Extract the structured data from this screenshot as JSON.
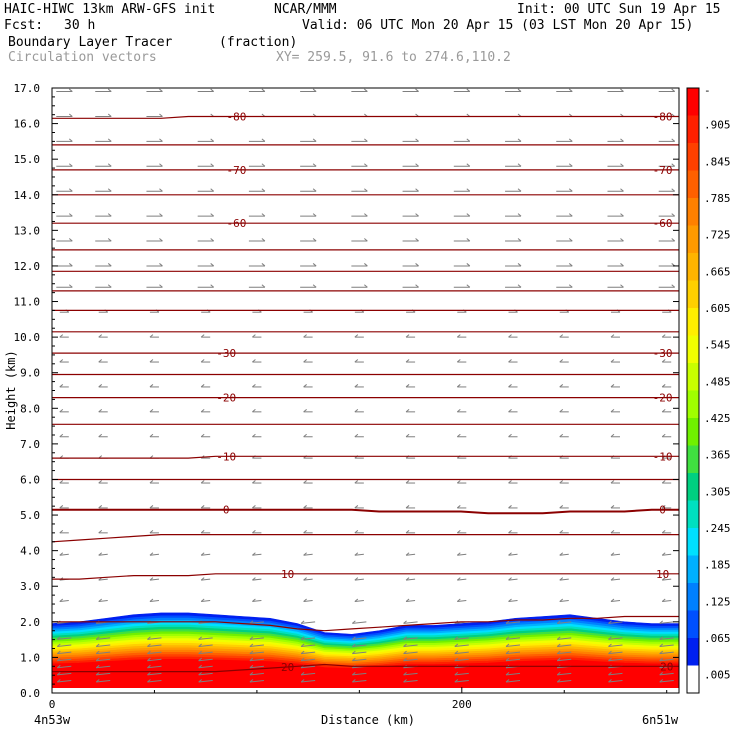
{
  "header": {
    "model": "HAIC-HIWC 13km ARW-GFS init",
    "org": "NCAR/MMM",
    "init": "Init: 00 UTC Sun 19 Apr 15",
    "fcst_label": "Fcst:",
    "fcst_value": "30 h",
    "valid": "Valid: 06 UTC Mon 20 Apr 15 (03 LST Mon 20 Apr 15)",
    "field": "Boundary Layer Tracer",
    "field_units": "(fraction)",
    "overlay": "Circulation vectors",
    "xy": "XY= 259.5, 91.6 to 274.6,110.2"
  },
  "chart_data": {
    "type": "heatmap",
    "xlabel": "Distance (km)",
    "ylabel": "Height (km)",
    "xlim": [
      0,
      306
    ],
    "ylim": [
      0,
      17
    ],
    "x_ticks": [
      {
        "value": 0,
        "label": "0"
      },
      {
        "value": 200,
        "label": "200"
      }
    ],
    "x_end_labels": {
      "left": "4n53w",
      "right": "6n51w"
    },
    "y_ticks": [
      "0.0",
      "1.0",
      "2.0",
      "3.0",
      "4.0",
      "5.0",
      "6.0",
      "7.0",
      "8.0",
      "9.0",
      "10.0",
      "11.0",
      "12.0",
      "13.0",
      "14.0",
      "15.0",
      "16.0",
      "17.0"
    ],
    "colorbar": {
      "labels": [
        "-",
        ".905",
        ".845",
        ".785",
        ".725",
        ".665",
        ".605",
        ".545",
        ".485",
        ".425",
        ".365",
        ".305",
        ".245",
        ".185",
        ".125",
        ".065",
        ".005"
      ],
      "colors": [
        "#ff0000",
        "#ff2000",
        "#ff4000",
        "#ff6000",
        "#ff8000",
        "#ff9a00",
        "#ffb400",
        "#ffd000",
        "#ffee00",
        "#f0ff00",
        "#c8ff00",
        "#a0ff00",
        "#70f000",
        "#40e040",
        "#00d080",
        "#00e0c0",
        "#00e0ff",
        "#00b0ff",
        "#0080ff",
        "#0050ff",
        "#0020f0"
      ],
      "bottom_color": "#ffffff"
    },
    "tracer_top_km": [
      1.95,
      2.0,
      2.1,
      2.2,
      2.25,
      2.25,
      2.2,
      2.15,
      2.1,
      1.95,
      1.7,
      1.65,
      1.75,
      1.9,
      1.9,
      1.95,
      2.0,
      2.1,
      2.15,
      2.2,
      2.1,
      2.0,
      1.95,
      1.95
    ],
    "isotherms": [
      {
        "value": 20,
        "label": "20",
        "heights": [
          0.6,
          0.6,
          0.6,
          0.6,
          0.6,
          0.6,
          0.6,
          0.65,
          0.7,
          0.75,
          0.8,
          0.75,
          0.75,
          0.75,
          0.75,
          0.75,
          0.75,
          0.75,
          0.75,
          0.75,
          0.75,
          0.75,
          0.75,
          0.75
        ],
        "labeled": true
      },
      {
        "value": 15,
        "label": "",
        "heights": [
          2.0,
          2.0,
          2.0,
          2.0,
          2.0,
          2.0,
          2.0,
          1.95,
          1.9,
          1.8,
          1.75,
          1.8,
          1.85,
          1.9,
          1.95,
          2.0,
          2.0,
          2.05,
          2.05,
          2.1,
          2.1,
          2.15,
          2.15,
          2.15
        ],
        "labeled": false
      },
      {
        "value": 10,
        "label": "10",
        "heights": [
          3.2,
          3.2,
          3.25,
          3.3,
          3.3,
          3.3,
          3.35,
          3.35,
          3.35,
          3.35,
          3.35,
          3.35,
          3.35,
          3.35,
          3.35,
          3.35,
          3.35,
          3.35,
          3.35,
          3.35,
          3.35,
          3.35,
          3.35,
          3.35
        ],
        "labeled": true
      },
      {
        "value": 5,
        "label": "",
        "heights": [
          4.25,
          4.3,
          4.35,
          4.4,
          4.45,
          4.45,
          4.45,
          4.45,
          4.45,
          4.45,
          4.45,
          4.45,
          4.45,
          4.45,
          4.45,
          4.45,
          4.45,
          4.45,
          4.45,
          4.45,
          4.45,
          4.45,
          4.45,
          4.45
        ],
        "labeled": false
      },
      {
        "value": 0,
        "label": "0",
        "heights": [
          5.15,
          5.15,
          5.15,
          5.15,
          5.15,
          5.15,
          5.15,
          5.15,
          5.15,
          5.15,
          5.15,
          5.15,
          5.1,
          5.1,
          5.1,
          5.1,
          5.05,
          5.05,
          5.05,
          5.1,
          5.1,
          5.1,
          5.15,
          5.15
        ],
        "labeled": true
      },
      {
        "value": -5,
        "label": "",
        "heights": [
          6.0,
          6.0,
          6.0,
          6.0,
          6.0,
          6.0,
          6.0,
          6.0,
          6.0,
          6.0,
          6.0,
          6.0,
          6.0,
          6.0,
          6.0,
          6.0,
          6.0,
          6.0,
          6.0,
          6.0,
          6.0,
          6.0,
          6.0,
          6.0
        ],
        "labeled": false
      },
      {
        "value": -10,
        "label": "-10",
        "heights": [
          6.6,
          6.6,
          6.6,
          6.6,
          6.6,
          6.6,
          6.65,
          6.65,
          6.65,
          6.65,
          6.65,
          6.65,
          6.65,
          6.65,
          6.65,
          6.65,
          6.65,
          6.65,
          6.65,
          6.65,
          6.65,
          6.65,
          6.65,
          6.65
        ],
        "labeled": true
      },
      {
        "value": -15,
        "label": "",
        "heights": [
          7.55,
          7.55,
          7.55,
          7.55,
          7.55,
          7.55,
          7.55,
          7.55,
          7.55,
          7.55,
          7.55,
          7.55,
          7.55,
          7.55,
          7.55,
          7.55,
          7.55,
          7.55,
          7.55,
          7.55,
          7.55,
          7.55,
          7.55,
          7.55
        ],
        "labeled": false
      },
      {
        "value": -20,
        "label": "-20",
        "heights": [
          8.3,
          8.3,
          8.3,
          8.3,
          8.3,
          8.3,
          8.3,
          8.3,
          8.3,
          8.3,
          8.3,
          8.3,
          8.3,
          8.3,
          8.3,
          8.3,
          8.3,
          8.3,
          8.3,
          8.3,
          8.3,
          8.3,
          8.3,
          8.3
        ],
        "labeled": true
      },
      {
        "value": -25,
        "label": "",
        "heights": [
          8.95,
          8.95,
          8.95,
          8.95,
          8.95,
          8.95,
          8.95,
          8.95,
          8.95,
          8.95,
          8.95,
          8.95,
          8.95,
          8.95,
          8.95,
          8.95,
          8.95,
          8.95,
          8.95,
          8.95,
          8.95,
          8.95,
          8.95,
          8.95
        ],
        "labeled": false
      },
      {
        "value": -30,
        "label": "-30",
        "heights": [
          9.55,
          9.55,
          9.55,
          9.55,
          9.55,
          9.55,
          9.55,
          9.55,
          9.55,
          9.55,
          9.55,
          9.55,
          9.55,
          9.55,
          9.55,
          9.55,
          9.55,
          9.55,
          9.55,
          9.55,
          9.55,
          9.55,
          9.55,
          9.55
        ],
        "labeled": true
      },
      {
        "value": -35,
        "label": "",
        "heights": [
          10.15,
          10.15,
          10.15,
          10.15,
          10.15,
          10.15,
          10.15,
          10.15,
          10.15,
          10.15,
          10.15,
          10.15,
          10.15,
          10.15,
          10.15,
          10.15,
          10.15,
          10.15,
          10.15,
          10.15,
          10.15,
          10.15,
          10.15,
          10.15
        ],
        "labeled": false
      },
      {
        "value": -40,
        "label": "",
        "heights": [
          10.75,
          10.75,
          10.75,
          10.75,
          10.75,
          10.75,
          10.75,
          10.75,
          10.75,
          10.75,
          10.75,
          10.75,
          10.75,
          10.75,
          10.75,
          10.75,
          10.75,
          10.75,
          10.75,
          10.75,
          10.75,
          10.75,
          10.75,
          10.75
        ],
        "labeled": false
      },
      {
        "value": -45,
        "label": "",
        "heights": [
          11.3,
          11.3,
          11.3,
          11.3,
          11.3,
          11.3,
          11.3,
          11.3,
          11.3,
          11.3,
          11.3,
          11.3,
          11.3,
          11.3,
          11.3,
          11.3,
          11.3,
          11.3,
          11.3,
          11.3,
          11.3,
          11.3,
          11.3,
          11.3
        ],
        "labeled": false
      },
      {
        "value": -50,
        "label": "",
        "heights": [
          11.85,
          11.85,
          11.85,
          11.85,
          11.85,
          11.85,
          11.85,
          11.85,
          11.85,
          11.85,
          11.85,
          11.85,
          11.85,
          11.85,
          11.85,
          11.85,
          11.85,
          11.85,
          11.85,
          11.85,
          11.85,
          11.85,
          11.85,
          11.85
        ],
        "labeled": false
      },
      {
        "value": -55,
        "label": "",
        "heights": [
          12.45,
          12.45,
          12.45,
          12.45,
          12.45,
          12.45,
          12.45,
          12.45,
          12.45,
          12.45,
          12.45,
          12.45,
          12.45,
          12.45,
          12.45,
          12.45,
          12.45,
          12.45,
          12.45,
          12.45,
          12.45,
          12.45,
          12.45,
          12.45
        ],
        "labeled": false
      },
      {
        "value": -60,
        "label": "-60",
        "heights": [
          13.2,
          13.2,
          13.2,
          13.2,
          13.2,
          13.2,
          13.2,
          13.2,
          13.2,
          13.2,
          13.2,
          13.2,
          13.2,
          13.2,
          13.2,
          13.2,
          13.2,
          13.2,
          13.2,
          13.2,
          13.2,
          13.2,
          13.2,
          13.2
        ],
        "labeled": true
      },
      {
        "value": -65,
        "label": "",
        "heights": [
          14.0,
          14.0,
          14.0,
          14.0,
          14.0,
          14.0,
          14.0,
          14.0,
          14.0,
          14.0,
          14.0,
          14.0,
          14.0,
          14.0,
          14.0,
          14.0,
          14.0,
          14.0,
          14.0,
          14.0,
          14.0,
          14.0,
          14.0,
          14.0
        ],
        "labeled": false
      },
      {
        "value": -70,
        "label": "-70",
        "heights": [
          14.7,
          14.7,
          14.7,
          14.7,
          14.7,
          14.7,
          14.7,
          14.7,
          14.7,
          14.7,
          14.7,
          14.7,
          14.7,
          14.7,
          14.7,
          14.7,
          14.7,
          14.7,
          14.7,
          14.7,
          14.7,
          14.7,
          14.7,
          14.7
        ],
        "labeled": true
      },
      {
        "value": -75,
        "label": "",
        "heights": [
          15.4,
          15.4,
          15.4,
          15.4,
          15.4,
          15.4,
          15.4,
          15.4,
          15.4,
          15.4,
          15.4,
          15.4,
          15.4,
          15.4,
          15.4,
          15.4,
          15.4,
          15.4,
          15.4,
          15.4,
          15.4,
          15.4,
          15.4,
          15.4
        ],
        "labeled": false
      },
      {
        "value": -80,
        "label": "-80",
        "heights": [
          16.15,
          16.15,
          16.15,
          16.15,
          16.15,
          16.2,
          16.2,
          16.2,
          16.2,
          16.2,
          16.2,
          16.2,
          16.2,
          16.2,
          16.2,
          16.2,
          16.2,
          16.2,
          16.2,
          16.2,
          16.2,
          16.2,
          16.2,
          16.2
        ],
        "labeled": true
      }
    ],
    "isotherm_color": "#8b0000",
    "vector_color": "#7f7f7f",
    "vector_rows_km": [
      0.35,
      0.55,
      0.75,
      0.95,
      1.15,
      1.35,
      1.55,
      2.0,
      2.6,
      3.2,
      3.9,
      4.5,
      5.2,
      5.9,
      6.6,
      7.2,
      7.9,
      8.6,
      9.3,
      10.0,
      10.7,
      11.4,
      12.0,
      12.7,
      13.4,
      14.1,
      14.8,
      15.5,
      16.2,
      16.9
    ],
    "vector_cols_km": [
      6,
      25,
      50,
      75,
      100,
      125,
      150,
      175,
      200,
      225,
      250,
      275,
      300
    ]
  }
}
